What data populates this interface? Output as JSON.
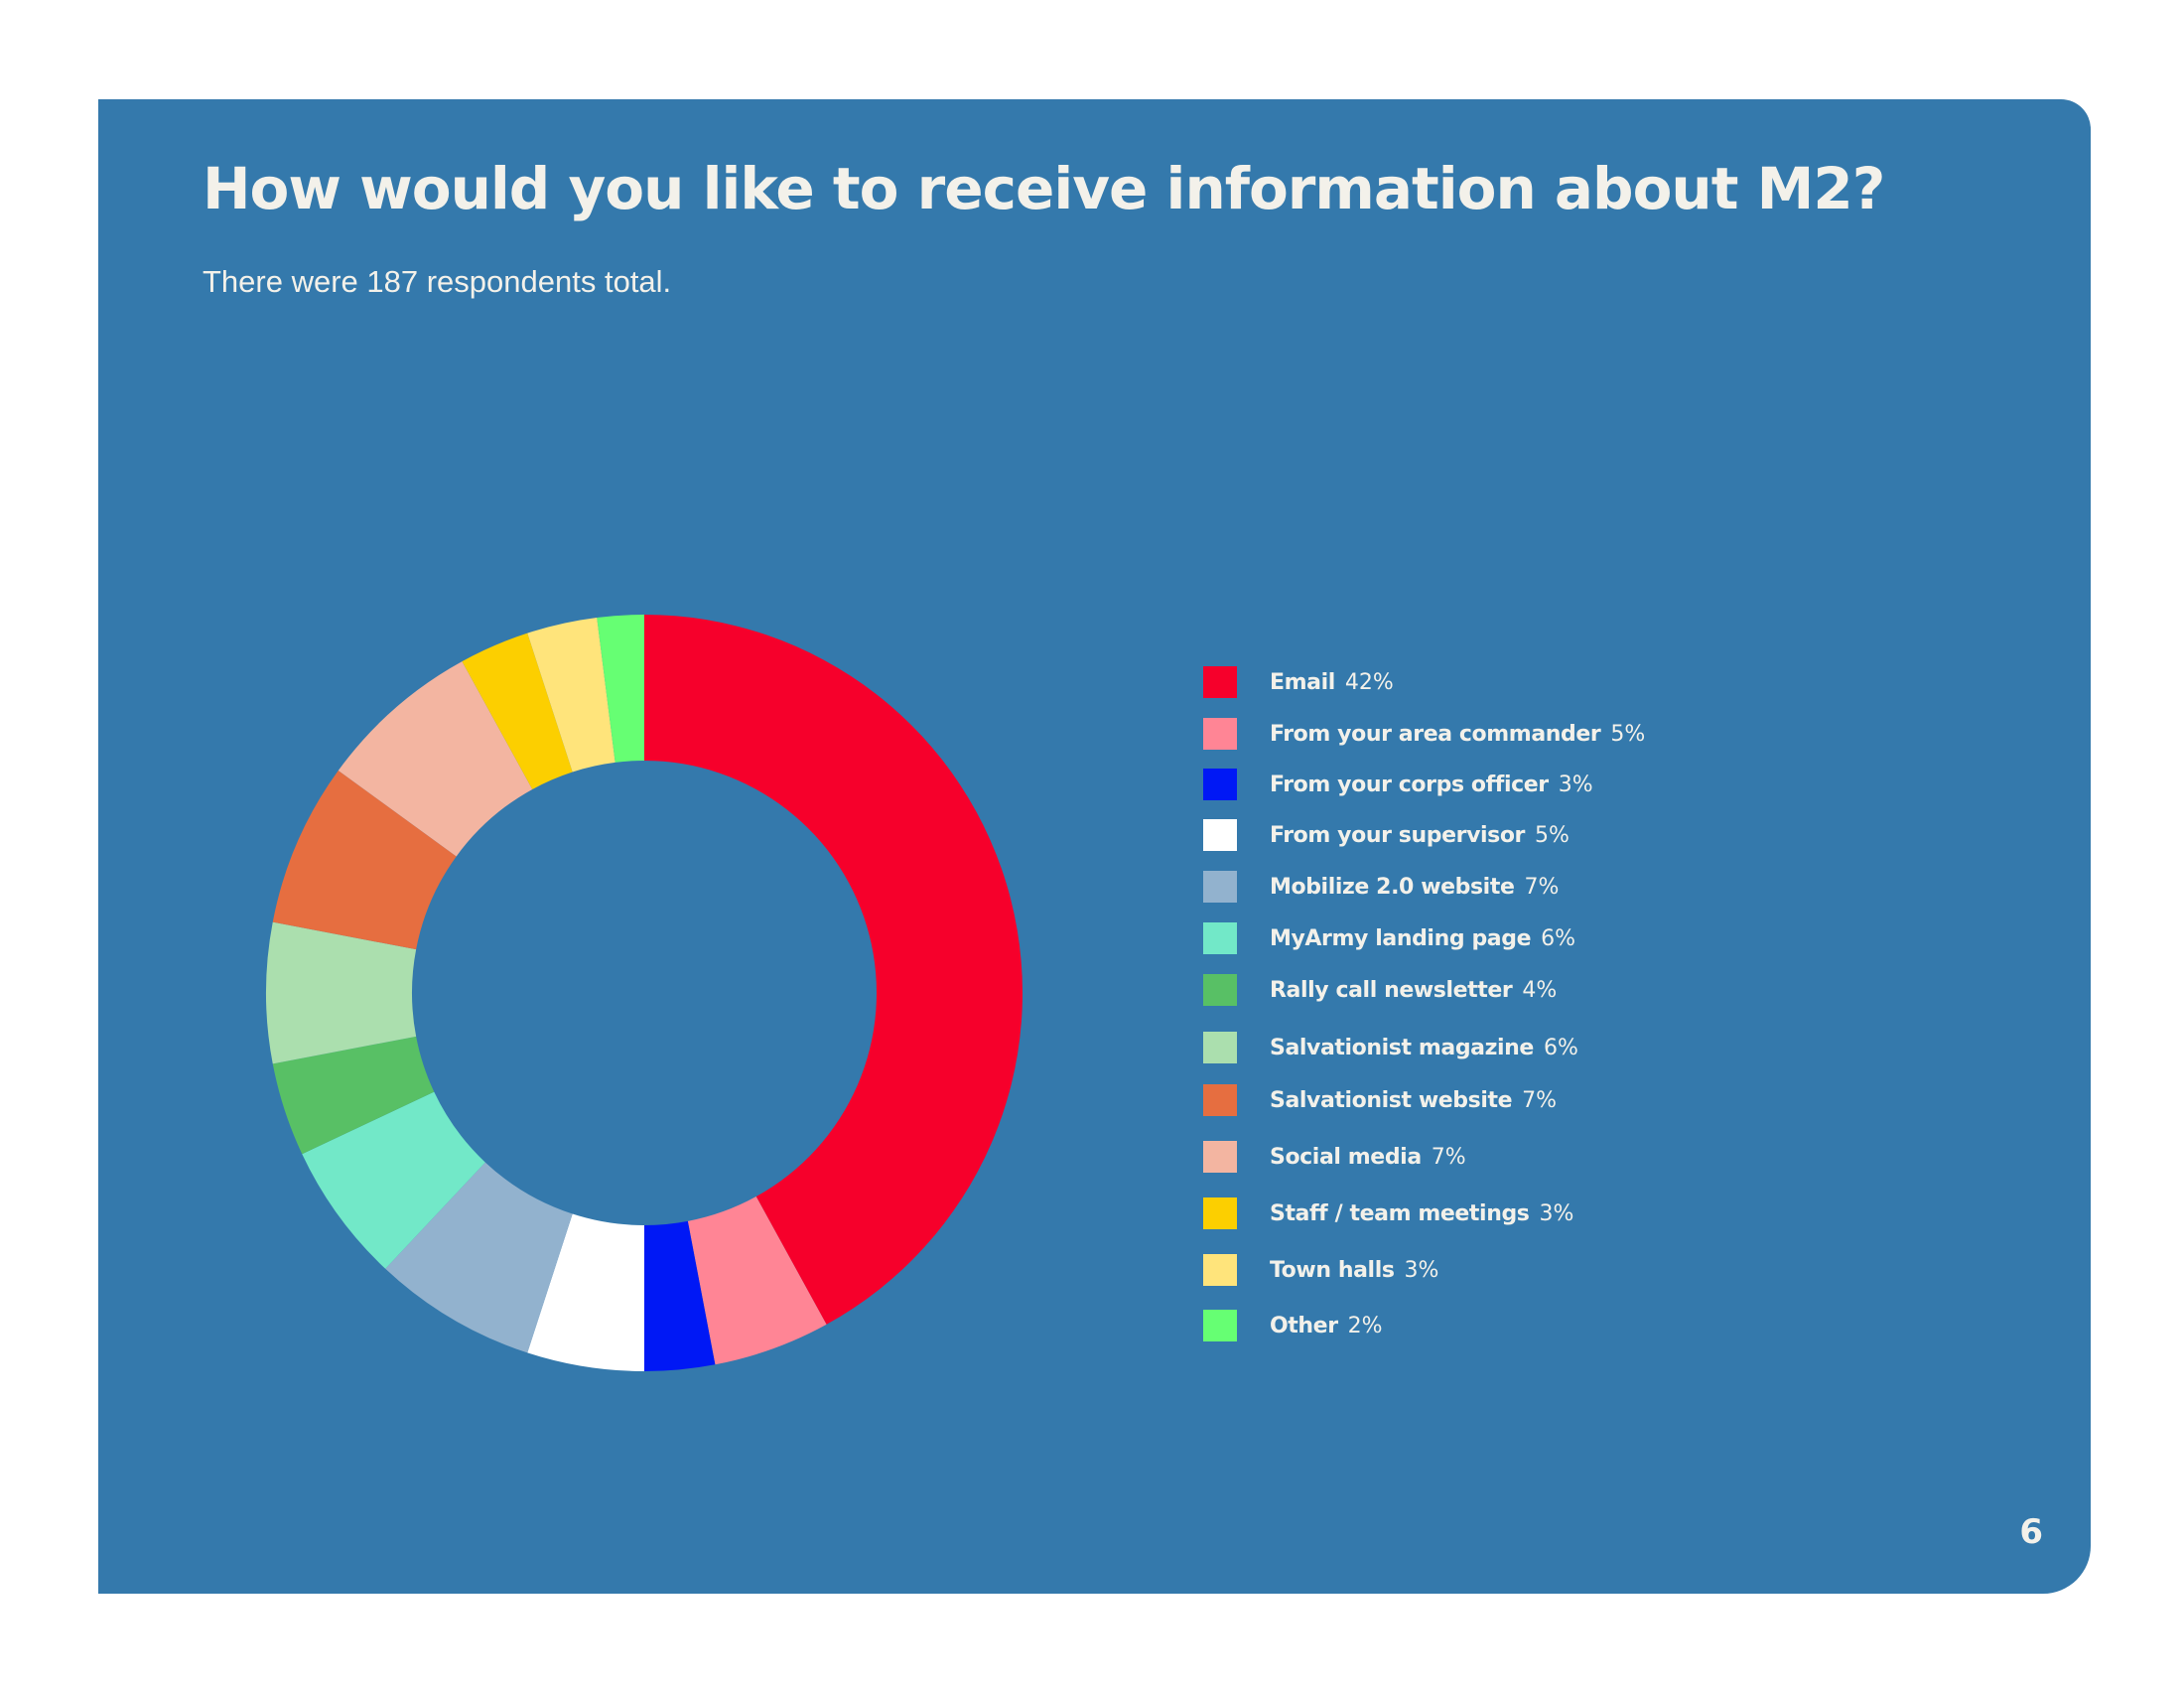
{
  "page": {
    "title": "How would you like to receive information about M2?",
    "subtitle": "There were 187 respondents total.",
    "page_number": "6",
    "colors": {
      "page_background": "#ffffff",
      "panel_background": "#3479ac",
      "text": "#f3f1ea"
    }
  },
  "chart_data": {
    "type": "pie",
    "variant": "donut",
    "title": "How would you like to receive information about M2?",
    "subtitle": "There were 187 respondents total.",
    "legend_placement": "right",
    "unit": "%",
    "categories": [
      "Email",
      "From your area commander",
      "From your corps  officer",
      "From your supervisor",
      "Mobilize 2.0 website",
      "MyArmy landing page",
      "Rally call newsletter",
      "Salvationist magazine",
      "Salvationist website",
      "Social media",
      "Staff / team meetings",
      "Town halls",
      "Other"
    ],
    "values": [
      42,
      5,
      3,
      5,
      7,
      6,
      4,
      6,
      7,
      7,
      3,
      3,
      2
    ],
    "value_labels": [
      "42%",
      "5%",
      "3%",
      "5%",
      "7%",
      "6%",
      "4%",
      "6%",
      "7%",
      "7%",
      "3%",
      "3%",
      "2%"
    ],
    "colors": [
      "#f6002b",
      "#ff8595",
      "#0018f5",
      "#ffffff",
      "#92b2ce",
      "#72e8c8",
      "#58c065",
      "#abdfae",
      "#e66e40",
      "#f3b5a1",
      "#fccf00",
      "#ffe47b",
      "#66ff73"
    ]
  }
}
